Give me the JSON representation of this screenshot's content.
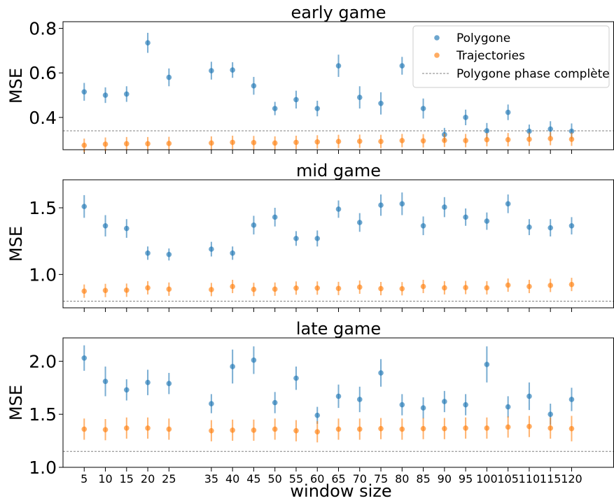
{
  "figure": {
    "xlabel": "window size",
    "legend": {
      "polygone": "Polygone",
      "trajectories": "Trajectories",
      "baseline": "Polygone phase complète"
    },
    "colors": {
      "polygone": "#1f77b4",
      "trajectories": "#ff7f0e",
      "baseline": "#808080"
    }
  },
  "chart_data": [
    {
      "type": "scatter",
      "title": "early game",
      "ylabel": "MSE",
      "x": [
        5,
        10,
        15,
        20,
        25,
        35,
        40,
        45,
        50,
        55,
        60,
        65,
        70,
        75,
        80,
        85,
        90,
        95,
        100,
        105,
        110,
        115,
        120
      ],
      "xlim": [
        0,
        130
      ],
      "ylim": [
        0.255,
        0.83
      ],
      "yticks": [
        0.4,
        0.6,
        0.8
      ],
      "ytick_labels": [
        "0.4",
        "0.6",
        "0.8"
      ],
      "legend_position": "upper right",
      "baseline": 0.34,
      "series": [
        {
          "name": "Polygone",
          "color_key": "polygone",
          "values": [
            0.515,
            0.5,
            0.505,
            0.735,
            0.58,
            0.61,
            0.613,
            0.542,
            0.44,
            0.48,
            0.44,
            0.632,
            0.49,
            0.463,
            0.632,
            0.44,
            0.323,
            0.4,
            0.34,
            0.423,
            0.338,
            0.348,
            0.338
          ],
          "err": [
            0.04,
            0.035,
            0.035,
            0.045,
            0.04,
            0.04,
            0.035,
            0.04,
            0.03,
            0.04,
            0.035,
            0.05,
            0.05,
            0.05,
            0.04,
            0.045,
            0.03,
            0.035,
            0.035,
            0.035,
            0.03,
            0.035,
            0.035
          ]
        },
        {
          "name": "Trajectories",
          "color_key": "trajectories",
          "values": [
            0.275,
            0.28,
            0.282,
            0.282,
            0.283,
            0.285,
            0.288,
            0.287,
            0.285,
            0.288,
            0.29,
            0.292,
            0.293,
            0.292,
            0.296,
            0.295,
            0.297,
            0.296,
            0.3,
            0.3,
            0.302,
            0.305,
            0.302
          ],
          "err": [
            0.03,
            0.03,
            0.03,
            0.03,
            0.03,
            0.03,
            0.03,
            0.03,
            0.03,
            0.03,
            0.03,
            0.03,
            0.03,
            0.03,
            0.03,
            0.03,
            0.03,
            0.03,
            0.03,
            0.03,
            0.03,
            0.03,
            0.03
          ]
        }
      ]
    },
    {
      "type": "scatter",
      "title": "mid game",
      "ylabel": "MSE",
      "x": [
        5,
        10,
        15,
        20,
        25,
        35,
        40,
        45,
        50,
        55,
        60,
        65,
        70,
        75,
        80,
        85,
        90,
        95,
        100,
        105,
        110,
        115,
        120
      ],
      "xlim": [
        0,
        130
      ],
      "ylim": [
        0.75,
        1.71
      ],
      "yticks": [
        1.0,
        1.5
      ],
      "ytick_labels": [
        "1.0",
        "1.5"
      ],
      "baseline": 0.8,
      "series": [
        {
          "name": "Polygone",
          "color_key": "polygone",
          "values": [
            1.51,
            1.365,
            1.345,
            1.16,
            1.15,
            1.19,
            1.16,
            1.37,
            1.43,
            1.27,
            1.27,
            1.49,
            1.39,
            1.52,
            1.53,
            1.365,
            1.505,
            1.43,
            1.4,
            1.53,
            1.355,
            1.35,
            1.365
          ],
          "err": [
            0.085,
            0.08,
            0.07,
            0.05,
            0.045,
            0.055,
            0.05,
            0.07,
            0.07,
            0.055,
            0.06,
            0.065,
            0.07,
            0.08,
            0.085,
            0.07,
            0.075,
            0.065,
            0.065,
            0.07,
            0.06,
            0.065,
            0.065
          ]
        },
        {
          "name": "Trajectories",
          "color_key": "trajectories",
          "values": [
            0.875,
            0.88,
            0.882,
            0.9,
            0.89,
            0.887,
            0.91,
            0.888,
            0.89,
            0.898,
            0.898,
            0.895,
            0.905,
            0.894,
            0.893,
            0.91,
            0.9,
            0.902,
            0.9,
            0.92,
            0.91,
            0.918,
            0.925
          ],
          "err": [
            0.05,
            0.05,
            0.05,
            0.05,
            0.05,
            0.05,
            0.05,
            0.05,
            0.05,
            0.05,
            0.05,
            0.05,
            0.05,
            0.05,
            0.05,
            0.05,
            0.05,
            0.05,
            0.05,
            0.05,
            0.05,
            0.05,
            0.05
          ]
        }
      ]
    },
    {
      "type": "scatter",
      "title": "late game",
      "ylabel": "MSE",
      "x": [
        5,
        10,
        15,
        20,
        25,
        35,
        40,
        45,
        50,
        55,
        60,
        65,
        70,
        75,
        80,
        85,
        90,
        95,
        100,
        105,
        110,
        115,
        120
      ],
      "xlim": [
        0,
        130
      ],
      "xticks": [
        5,
        10,
        15,
        20,
        25,
        35,
        40,
        45,
        50,
        55,
        60,
        65,
        70,
        75,
        80,
        85,
        90,
        95,
        100,
        105,
        110,
        115,
        120
      ],
      "xtick_labels": [
        "5",
        "10",
        "15",
        "20",
        "25",
        "35",
        "40",
        "45",
        "50",
        "55",
        "60",
        "65",
        "70",
        "75",
        "80",
        "85",
        "90",
        "95",
        "100",
        "105",
        "110",
        "115",
        "120"
      ],
      "ylim": [
        1.0,
        2.22
      ],
      "yticks": [
        1.0,
        1.5,
        2.0
      ],
      "ytick_labels": [
        "1.0",
        "1.5",
        "2.0"
      ],
      "baseline": 1.15,
      "series": [
        {
          "name": "Polygone",
          "color_key": "polygone",
          "values": [
            2.03,
            1.81,
            1.73,
            1.8,
            1.79,
            1.6,
            1.95,
            2.01,
            1.61,
            1.84,
            1.49,
            1.67,
            1.64,
            1.89,
            1.59,
            1.56,
            1.62,
            1.59,
            1.97,
            1.57,
            1.67,
            1.5,
            1.64
          ],
          "err": [
            0.12,
            0.14,
            0.1,
            0.12,
            0.1,
            0.09,
            0.16,
            0.13,
            0.1,
            0.11,
            0.08,
            0.11,
            0.12,
            0.13,
            0.1,
            0.1,
            0.1,
            0.1,
            0.17,
            0.1,
            0.13,
            0.1,
            0.11
          ]
        },
        {
          "name": "Trajectories",
          "color_key": "trajectories",
          "values": [
            1.36,
            1.355,
            1.37,
            1.37,
            1.36,
            1.345,
            1.35,
            1.35,
            1.36,
            1.345,
            1.335,
            1.36,
            1.36,
            1.365,
            1.36,
            1.365,
            1.365,
            1.37,
            1.37,
            1.38,
            1.385,
            1.37,
            1.365
          ],
          "err": [
            0.1,
            0.1,
            0.1,
            0.1,
            0.1,
            0.1,
            0.1,
            0.1,
            0.1,
            0.1,
            0.1,
            0.1,
            0.1,
            0.1,
            0.1,
            0.1,
            0.1,
            0.1,
            0.1,
            0.1,
            0.1,
            0.1,
            0.12
          ]
        }
      ]
    }
  ]
}
